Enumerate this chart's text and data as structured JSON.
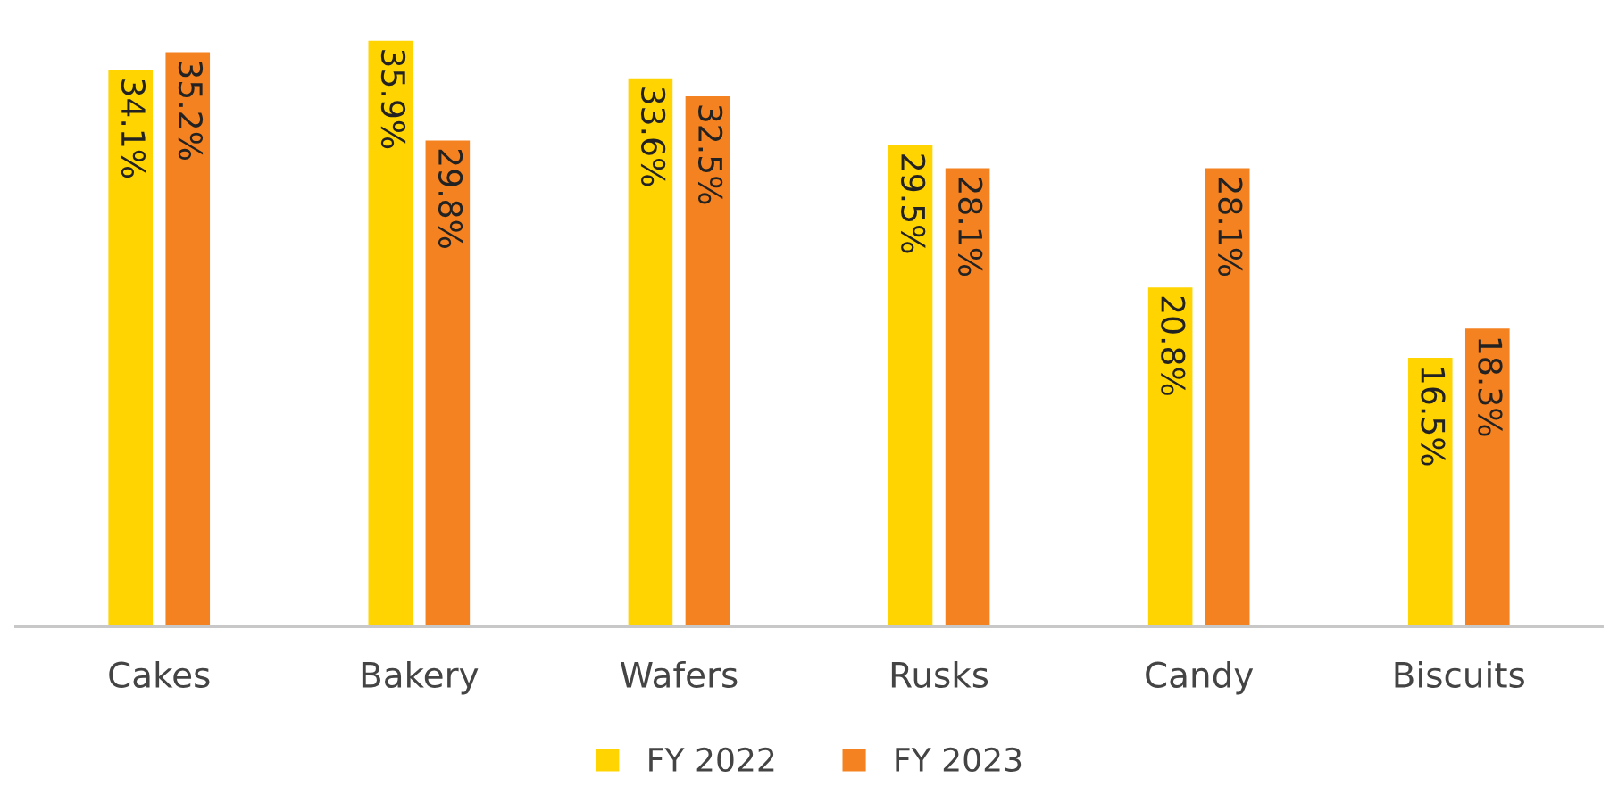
{
  "chart_data": {
    "type": "bar",
    "categories": [
      "Cakes",
      "Bakery",
      "Wafers",
      "Rusks",
      "Candy",
      "Biscuits"
    ],
    "series": [
      {
        "name": "FY 2022",
        "color": "#ffd400",
        "values": [
          34.1,
          35.9,
          33.6,
          29.5,
          20.8,
          16.5
        ],
        "value_labels": [
          "34.1%",
          "35.9%",
          "33.6%",
          "29.5%",
          "20.8%",
          "16.5%"
        ]
      },
      {
        "name": "FY 2023",
        "color": "#f58220",
        "values": [
          35.2,
          29.8,
          32.5,
          28.1,
          28.1,
          18.3
        ],
        "value_labels": [
          "35.2%",
          "29.8%",
          "32.5%",
          "28.1%",
          "28.1%",
          "18.3%"
        ]
      }
    ],
    "grid": false,
    "legend": "bottom",
    "tick_labels": "x"
  }
}
